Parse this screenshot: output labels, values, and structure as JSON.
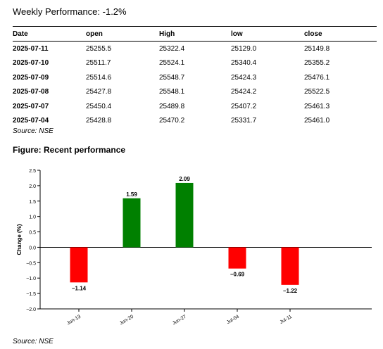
{
  "header": {
    "title": "Weekly Performance: -1.2%"
  },
  "table": {
    "columns": [
      "Date",
      "open",
      "High",
      "low",
      "close"
    ],
    "rows": [
      [
        "2025-07-11",
        "25255.5",
        "25322.4",
        "25129.0",
        "25149.8"
      ],
      [
        "2025-07-10",
        "25511.7",
        "25524.1",
        "25340.4",
        "25355.2"
      ],
      [
        "2025-07-09",
        "25514.6",
        "25548.7",
        "25424.3",
        "25476.1"
      ],
      [
        "2025-07-08",
        "25427.8",
        "25548.1",
        "25424.2",
        "25522.5"
      ],
      [
        "2025-07-07",
        "25450.4",
        "25489.8",
        "25407.2",
        "25461.3"
      ],
      [
        "2025-07-04",
        "25428.8",
        "25470.2",
        "25331.7",
        "25461.0"
      ]
    ],
    "source": "Source: NSE"
  },
  "figure": {
    "title": "Figure: Recent performance",
    "source": "Source: NSE"
  },
  "chart_data": {
    "type": "bar",
    "categories": [
      "Jun-13",
      "Jun-20",
      "Jun-27",
      "Jul-04",
      "Jul-11"
    ],
    "values": [
      -1.14,
      1.59,
      2.09,
      -0.69,
      -1.22
    ],
    "labels": [
      "−1.14",
      "1.59",
      "2.09",
      "−0.69",
      "−1.22"
    ],
    "title": "",
    "xlabel": "",
    "ylabel": "Change (%)",
    "ylim": [
      -2.0,
      2.5
    ],
    "yticks": [
      -2.0,
      -1.5,
      -1.0,
      -0.5,
      0.0,
      0.5,
      1.0,
      1.5,
      2.0,
      2.5
    ],
    "ytick_labels": [
      "−2.0",
      "−1.5",
      "−1.0",
      "−0.5",
      "0.0",
      "0.5",
      "1.0",
      "1.5",
      "2.0",
      "2.5"
    ],
    "colors": {
      "positive": "#008000",
      "negative": "#ff0000",
      "zero_line": "#000000"
    },
    "grid": false,
    "legend": "none"
  }
}
